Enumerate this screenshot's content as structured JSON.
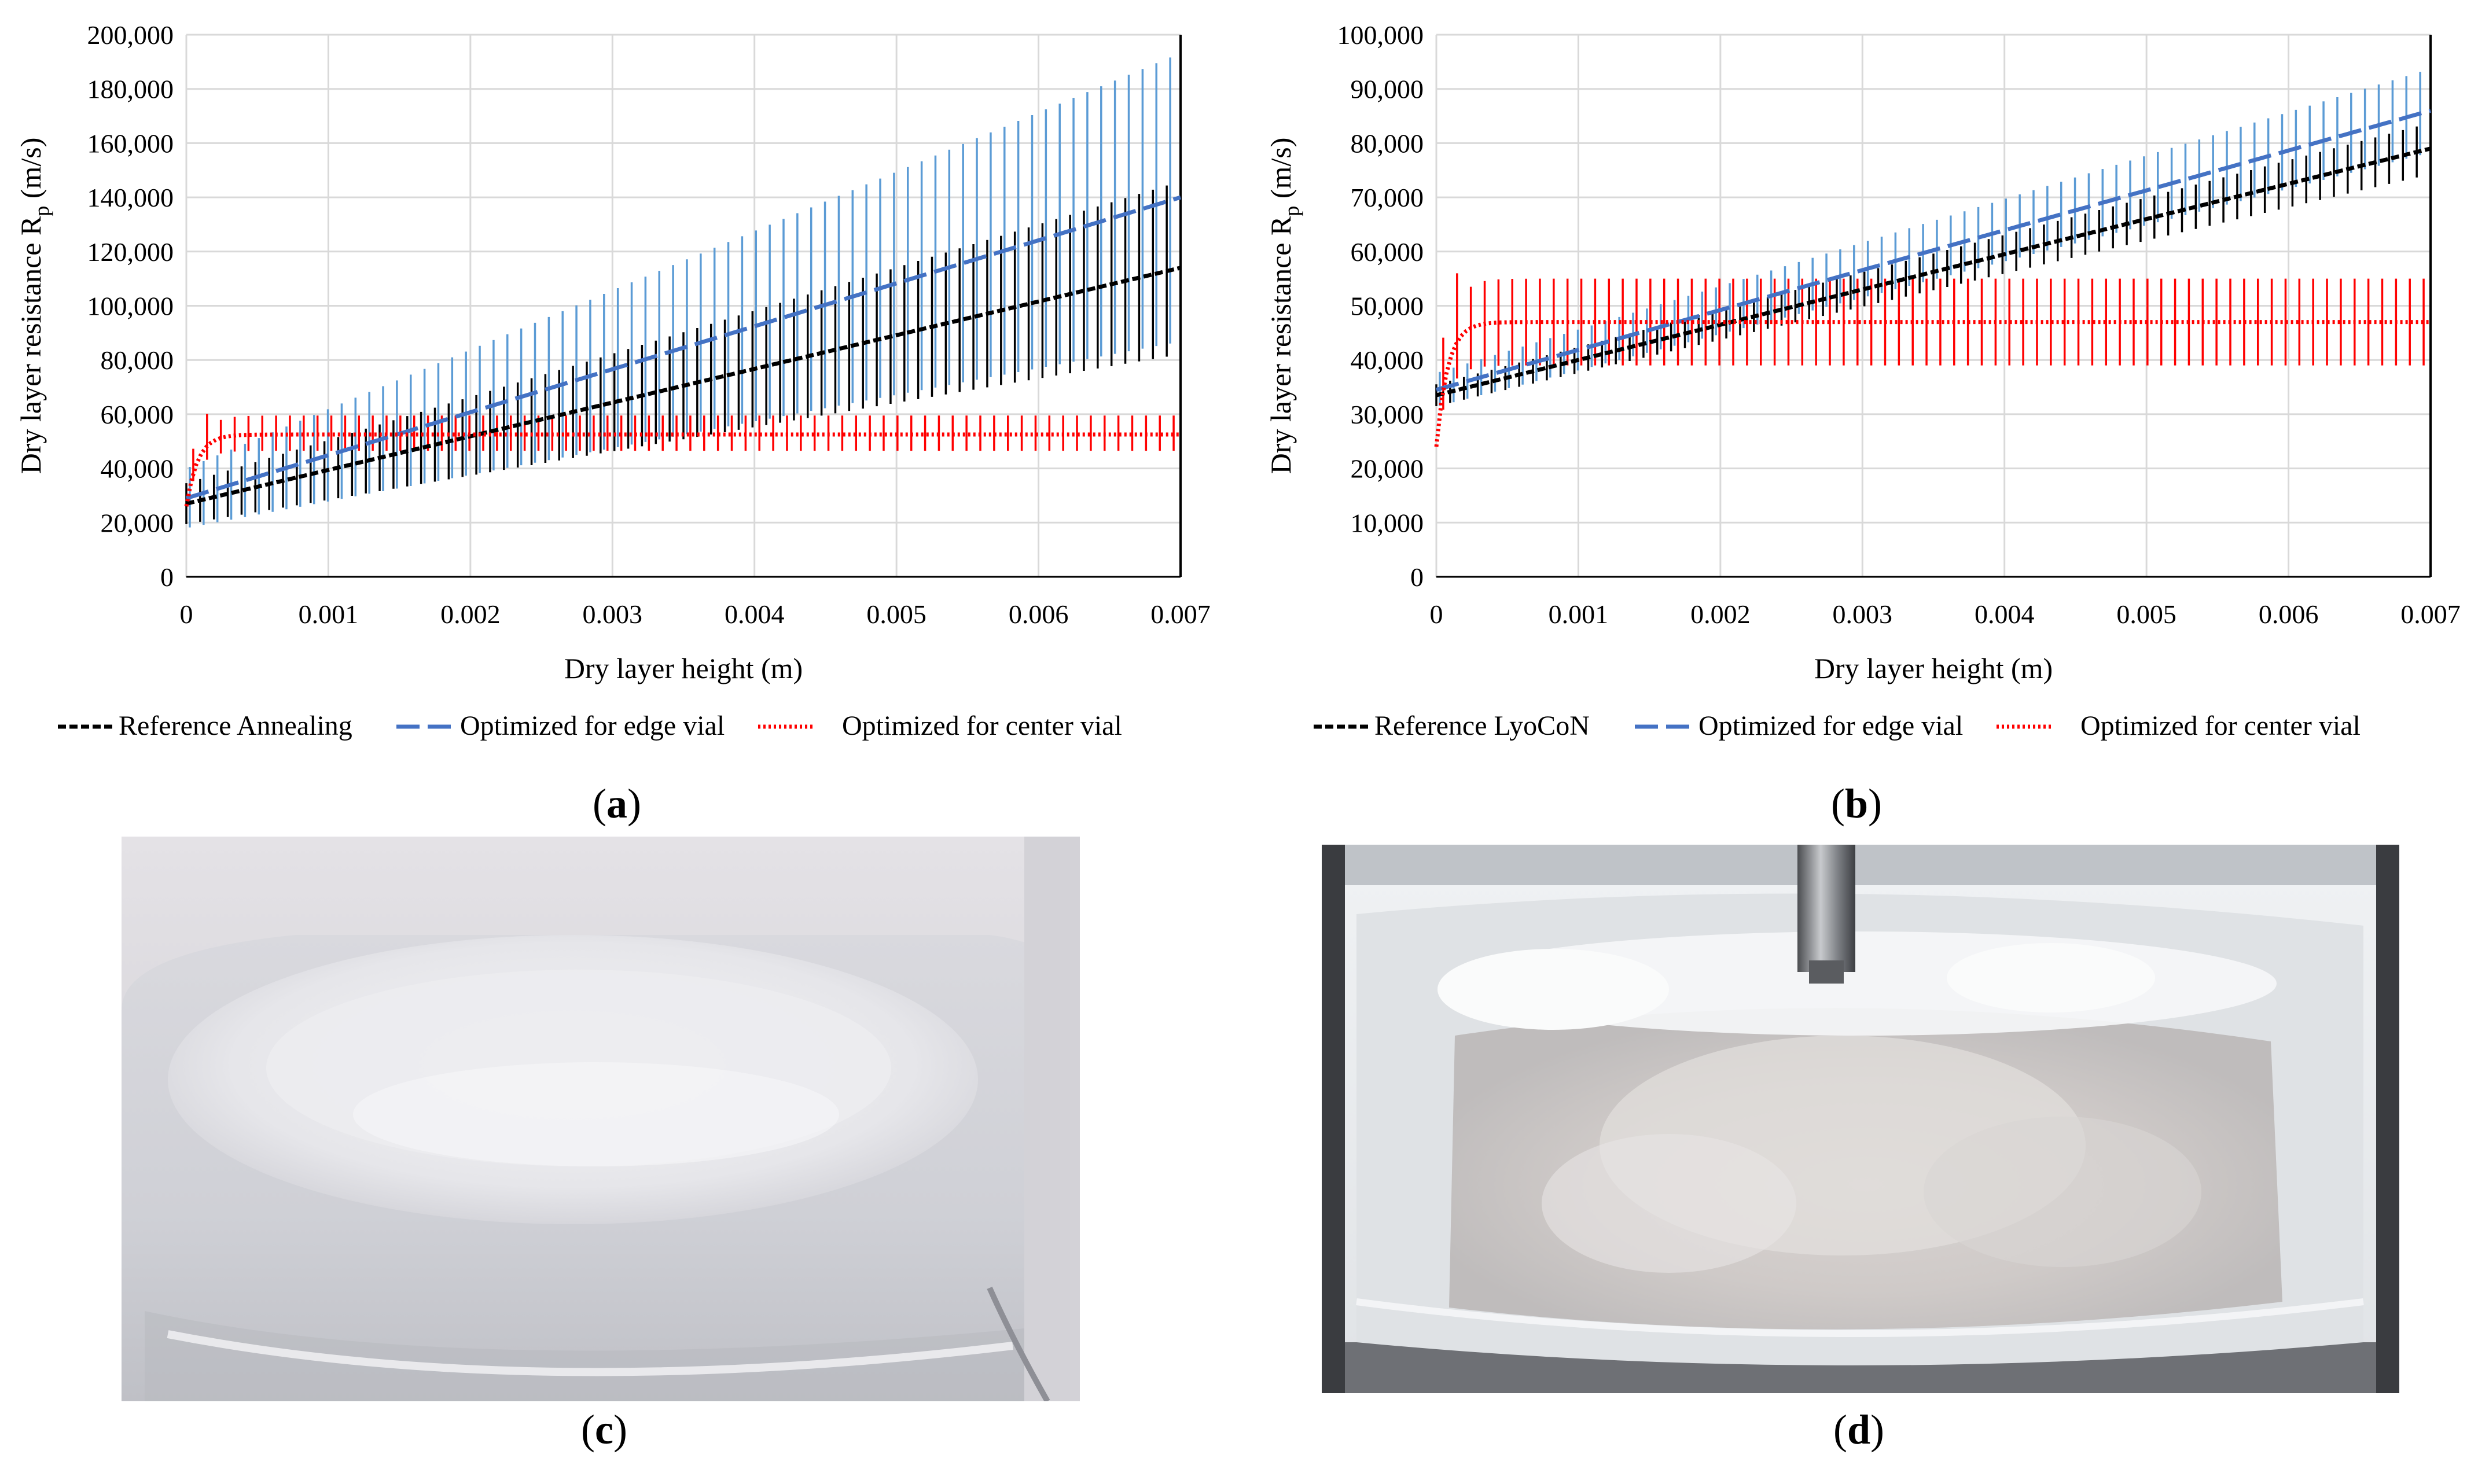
{
  "chart_data": [
    {
      "id": "a",
      "type": "line",
      "caption_letter": "a",
      "xlabel": "Dry layer height (m)",
      "ylabel_main": "Dry layer resistance R",
      "ylabel_sub": "p",
      "ylabel_unit": " (m/s)",
      "xlim": [
        0,
        0.007
      ],
      "ylim": [
        0,
        200000
      ],
      "x_ticks": [
        "0",
        "0.001",
        "0.002",
        "0.003",
        "0.004",
        "0.005",
        "0.006",
        "0.007"
      ],
      "y_ticks": [
        "0",
        "20,000",
        "40,000",
        "60,000",
        "80,000",
        "100,000",
        "120,000",
        "140,000",
        "160,000",
        "180,000",
        "200,000"
      ],
      "grid": true,
      "legend_position": "bottom",
      "series": [
        {
          "name": "Reference Annealing",
          "style": "dashed-short",
          "color": "#000000",
          "linear": [
            27000,
            114000
          ],
          "error_pct": 0.28
        },
        {
          "name": "Optimized for edge vial",
          "style": "dashed-long",
          "color": "#4472C4",
          "linear": [
            29000,
            140000
          ],
          "error_pct": 0.38,
          "error_color": "#5B9BD5"
        },
        {
          "name": "Optimized for center vial",
          "style": "dotted",
          "color": "#FF0000",
          "asymptote": 52500,
          "start": 26000,
          "err_plus": 7000,
          "err_minus": 6000
        }
      ]
    },
    {
      "id": "b",
      "type": "line",
      "caption_letter": "b",
      "xlabel": "Dry layer height (m)",
      "ylabel_main": "Dry layer resistance R",
      "ylabel_sub": "p",
      "ylabel_unit": " (m/s)",
      "xlim": [
        0,
        0.007
      ],
      "ylim": [
        0,
        100000
      ],
      "x_ticks": [
        "0",
        "0.001",
        "0.002",
        "0.003",
        "0.004",
        "0.005",
        "0.006",
        "0.007"
      ],
      "y_ticks": [
        "0",
        "10,000",
        "20,000",
        "30,000",
        "40,000",
        "50,000",
        "60,000",
        "70,000",
        "80,000",
        "90,000",
        "100,000"
      ],
      "grid": true,
      "legend_position": "bottom",
      "series": [
        {
          "name": "Reference LyoCoN",
          "style": "dashed-short",
          "color": "#000000",
          "linear": [
            33500,
            79000
          ],
          "error_pct": 0.06
        },
        {
          "name": "Optimized for edge vial",
          "style": "dashed-long",
          "color": "#4472C4",
          "linear": [
            34500,
            86000
          ],
          "error_pct": 0.09,
          "error_color": "#5B9BD5"
        },
        {
          "name": "Optimized for center vial",
          "style": "dotted",
          "color": "#FF0000",
          "asymptote": 47000,
          "start": 24000,
          "err_plus": 8000,
          "err_minus": 8000
        }
      ]
    }
  ],
  "photos": {
    "c": {
      "caption_letter": "c"
    },
    "d": {
      "caption_letter": "d"
    }
  }
}
